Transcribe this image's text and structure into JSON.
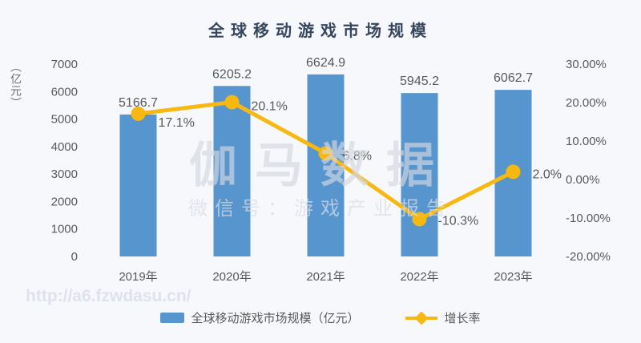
{
  "chart_data": {
    "type": "bar",
    "title": "全球移动游戏市场规模",
    "categories": [
      "2019年",
      "2020年",
      "2021年",
      "2022年",
      "2023年"
    ],
    "series": [
      {
        "name": "全球移动游戏市场规模（亿元）",
        "type": "bar",
        "axis": "left",
        "values": [
          5166.7,
          6205.2,
          6624.9,
          5945.2,
          6062.7
        ],
        "labels": [
          "5166.7",
          "6205.2",
          "6624.9",
          "5945.2",
          "6062.7"
        ],
        "color": "#5795cf"
      },
      {
        "name": "增长率",
        "type": "line",
        "axis": "right",
        "values": [
          17.1,
          20.1,
          6.8,
          -10.3,
          2.0
        ],
        "labels": [
          "17.1%",
          "20.1%",
          "6.8%",
          "-10.3%",
          "2.0%"
        ],
        "color": "#f8b812"
      }
    ],
    "left_axis": {
      "unit": "（亿元）",
      "min": 0,
      "max": 7000,
      "step": 1000,
      "tick_labels": [
        "7000",
        "6000",
        "5000",
        "4000",
        "3000",
        "2000",
        "1000",
        "0"
      ]
    },
    "right_axis": {
      "min": -20,
      "max": 30,
      "step": 10,
      "tick_labels": [
        "30.00%",
        "20.00%",
        "10.00%",
        "0.00%",
        "-10.00%",
        "-20.00%"
      ]
    },
    "grid": false,
    "legend_position": "bottom"
  },
  "watermark": {
    "brand": "伽马数据",
    "wechat": "微信号：游戏产业报告",
    "url": "http://a6.fzwdasu.cn/"
  },
  "colors": {
    "background": "#f6f8fc",
    "bar": "#5795cf",
    "line": "#f8b812",
    "title": "#36465e",
    "text": "#595959"
  }
}
